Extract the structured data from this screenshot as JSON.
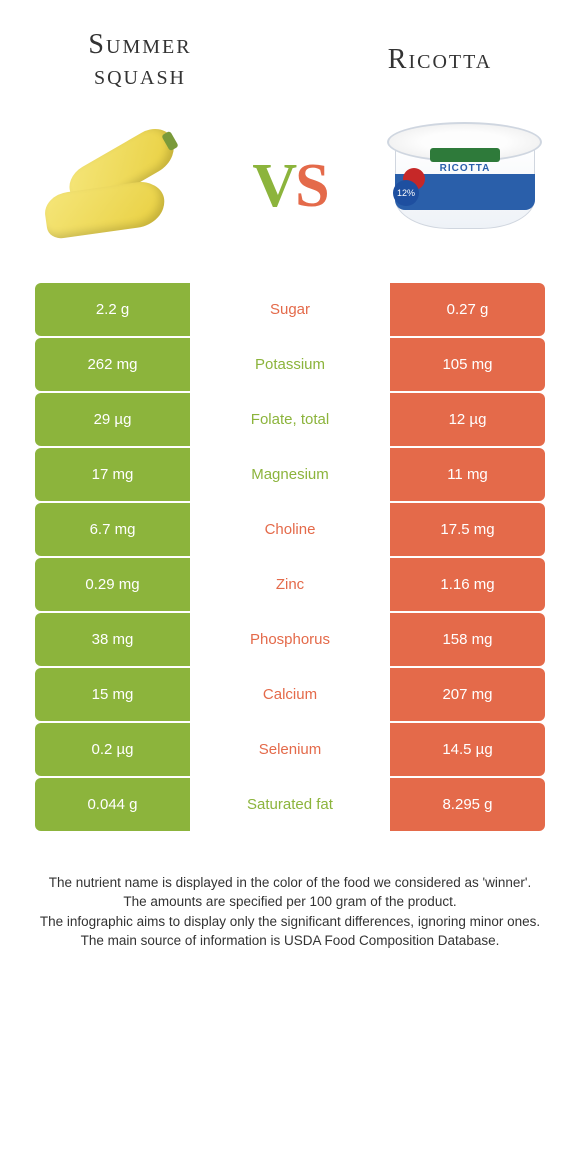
{
  "colors": {
    "left": "#8cb43c",
    "right": "#e46a4a",
    "row_text_white": "#ffffff"
  },
  "foods": {
    "left": {
      "title": "Summer squash"
    },
    "right": {
      "title": "Ricotta"
    }
  },
  "vs": {
    "v": "V",
    "s": "S"
  },
  "ricotta_label": "RICOTTA",
  "ricotta_pct": "12%",
  "table": {
    "type": "comparison-table",
    "columns": [
      "left_value",
      "nutrient",
      "right_value"
    ],
    "rows": [
      {
        "left": "2.2 g",
        "name": "Sugar",
        "right": "0.27 g",
        "winner": "right"
      },
      {
        "left": "262 mg",
        "name": "Potassium",
        "right": "105 mg",
        "winner": "left"
      },
      {
        "left": "29 µg",
        "name": "Folate, total",
        "right": "12 µg",
        "winner": "left"
      },
      {
        "left": "17 mg",
        "name": "Magnesium",
        "right": "11 mg",
        "winner": "left"
      },
      {
        "left": "6.7 mg",
        "name": "Choline",
        "right": "17.5 mg",
        "winner": "right"
      },
      {
        "left": "0.29 mg",
        "name": "Zinc",
        "right": "1.16 mg",
        "winner": "right"
      },
      {
        "left": "38 mg",
        "name": "Phosphorus",
        "right": "158 mg",
        "winner": "right"
      },
      {
        "left": "15 mg",
        "name": "Calcium",
        "right": "207 mg",
        "winner": "right"
      },
      {
        "left": "0.2 µg",
        "name": "Selenium",
        "right": "14.5 µg",
        "winner": "right"
      },
      {
        "left": "0.044 g",
        "name": "Saturated fat",
        "right": "8.295 g",
        "winner": "left"
      }
    ]
  },
  "footer": {
    "line1": "The nutrient name is displayed in the color of the food we considered as 'winner'.",
    "line2": "The amounts are specified per 100 gram of the product.",
    "line3": "The infographic aims to display only the significant differences, ignoring minor ones.",
    "line4": "The main source of information is USDA Food Composition Database."
  }
}
